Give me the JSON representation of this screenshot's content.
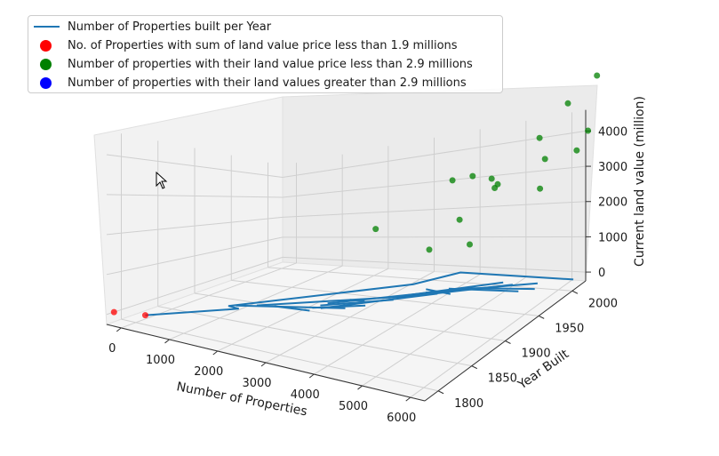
{
  "chart_data": {
    "type": "scatter",
    "projection": "3d",
    "xlabel": "Number of Properties",
    "ylabel": "Year Built",
    "zlabel": "Current land value (million)",
    "x_ticks": [
      "0",
      "1000",
      "2000",
      "3000",
      "4000",
      "5000",
      "6000"
    ],
    "y_ticks": [
      "1800",
      "1850",
      "1900",
      "1950",
      "2000"
    ],
    "z_ticks": [
      "0",
      "1000",
      "2000",
      "3000",
      "4000"
    ],
    "xlim": [
      -300,
      6300
    ],
    "ylim": [
      1780,
      2020
    ],
    "zlim": [
      -250,
      4600
    ],
    "series": [
      {
        "name": "Number of Properties built per Year",
        "kind": "line",
        "color": "#1f77b4",
        "z": 0,
        "segments": [
          [
            [
              200,
              1800
            ],
            [
              1250,
              1860
            ],
            [
              1000,
              1862
            ],
            [
              3300,
              1970
            ],
            [
              3800,
              2005
            ],
            [
              4150,
              2005
            ],
            [
              6250,
              2005
            ]
          ],
          [
            [
              1100,
              1866
            ],
            [
              2900,
              1900
            ]
          ],
          [
            [
              1400,
              1875
            ],
            [
              3700,
              1945
            ]
          ],
          [
            [
              1700,
              1880
            ],
            [
              2400,
              1883
            ]
          ],
          [
            [
              2500,
              1892
            ],
            [
              4050,
              1955
            ]
          ],
          [
            [
              3300,
              1935
            ],
            [
              4950,
              1990
            ]
          ],
          [
            [
              3800,
              1955
            ],
            [
              5650,
              1993
            ]
          ],
          [
            [
              4100,
              1968
            ],
            [
              5500,
              1975
            ]
          ],
          [
            [
              4350,
              1972
            ],
            [
              5750,
              1982
            ]
          ],
          [
            [
              3700,
              1962
            ],
            [
              4300,
              1957
            ]
          ],
          [
            [
              2700,
              1920
            ],
            [
              3000,
              1921
            ]
          ],
          [
            [
              2400,
              1898
            ],
            [
              3450,
              1932
            ]
          ],
          [
            [
              2450,
              1905
            ],
            [
              4200,
              1965
            ]
          ],
          [
            [
              3550,
              1940
            ],
            [
              5200,
              1987
            ]
          ],
          [
            [
              2350,
              1890
            ],
            [
              3150,
              1912
            ]
          ]
        ]
      },
      {
        "name": "No. of Properties with sum of land value price less than 1.9 millions",
        "kind": "scatter",
        "color": "#ff0000",
        "points": [
          [
            200,
            1800,
            0
          ],
          [
            -300,
            1790,
            0
          ]
        ]
      },
      {
        "name": "Number of properties with their land value price less than 2.9 millions",
        "kind": "scatter",
        "color": "#008000",
        "points": [
          [
            2800,
            1950,
            2000
          ],
          [
            3800,
            1960,
            1300
          ],
          [
            4300,
            1985,
            1200
          ],
          [
            4600,
            1950,
            2400
          ],
          [
            4700,
            1990,
            3200
          ],
          [
            5200,
            1965,
            3300
          ],
          [
            5600,
            2000,
            2700
          ],
          [
            5500,
            1940,
            3500
          ],
          [
            6000,
            1980,
            3800
          ],
          [
            6250,
            2010,
            3600
          ],
          [
            5100,
            1935,
            3900
          ],
          [
            4300,
            1960,
            3500
          ],
          [
            6100,
            1965,
            4600
          ],
          [
            6350,
            2020,
            4000
          ],
          [
            6350,
            1990,
            5200
          ],
          [
            6400,
            2030,
            5400
          ]
        ]
      },
      {
        "name": "Number of properties with their land values greater than 2.9 millions",
        "kind": "scatter",
        "color": "#0000ff",
        "points": []
      }
    ],
    "legend": "top-left"
  }
}
